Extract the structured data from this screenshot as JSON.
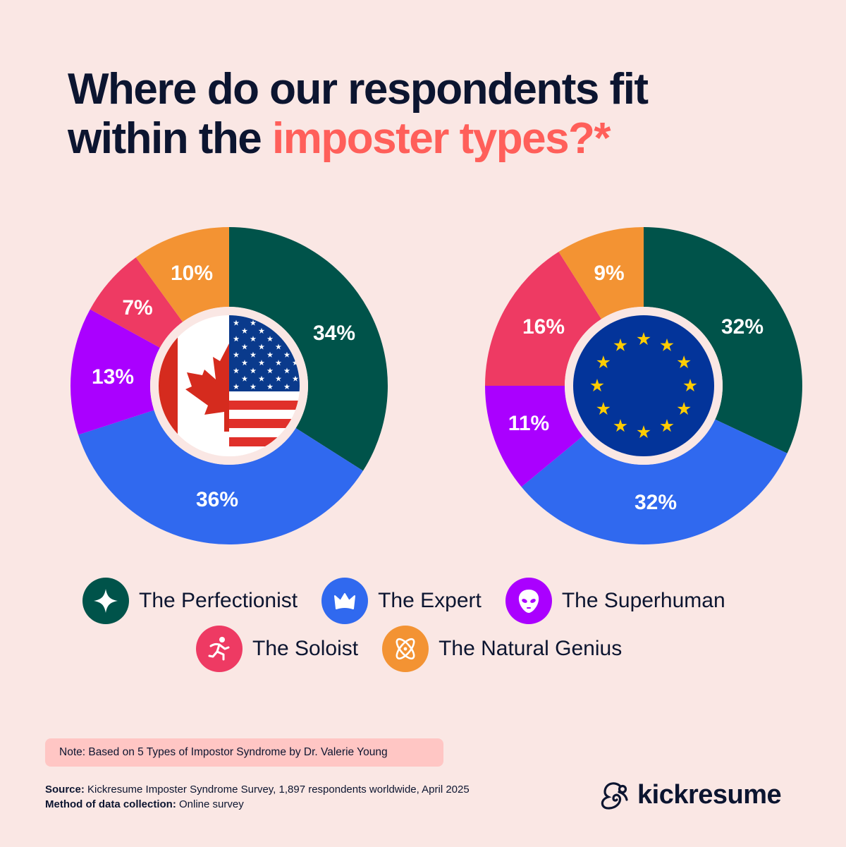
{
  "title": {
    "line1": "Where do our respondents fit",
    "line2_prefix": "within the ",
    "line2_accent": "imposter types?*"
  },
  "colors": {
    "background": "#FAE7E4",
    "title_dark": "#0C1530",
    "title_accent": "#FF5F5A",
    "perfectionist": "#00534A",
    "expert": "#3069EF",
    "superhuman": "#AA00FF",
    "soloist": "#EE3A63",
    "natural_genius": "#F39333",
    "note_bg": "#FFC6C4"
  },
  "chart_data": [
    {
      "type": "pie",
      "variant": "donut",
      "title": "Canada & USA",
      "center_image": "canada-usa-split-flag",
      "categories": [
        "The Perfectionist",
        "The Expert",
        "The Superhuman",
        "The Soloist",
        "The Natural Genius"
      ],
      "values": [
        34,
        36,
        13,
        7,
        10
      ],
      "labels": [
        "34%",
        "36%",
        "13%",
        "7%",
        "10%"
      ],
      "colors": [
        "#00534A",
        "#3069EF",
        "#AA00FF",
        "#EE3A63",
        "#F39333"
      ],
      "start_angle": "12 o'clock",
      "direction": "clockwise"
    },
    {
      "type": "pie",
      "variant": "donut",
      "title": "European Union",
      "center_image": "eu-flag",
      "categories": [
        "The Perfectionist",
        "The Expert",
        "The Superhuman",
        "The Soloist",
        "The Natural Genius"
      ],
      "values": [
        32,
        32,
        11,
        16,
        9
      ],
      "labels": [
        "32%",
        "32%",
        "11%",
        "16%",
        "9%"
      ],
      "colors": [
        "#00534A",
        "#3069EF",
        "#AA00FF",
        "#EE3A63",
        "#F39333"
      ],
      "start_angle": "12 o'clock",
      "direction": "clockwise"
    }
  ],
  "legend": {
    "items": [
      {
        "label": "The Perfectionist",
        "icon": "sparkle-star-icon",
        "color": "#00534A"
      },
      {
        "label": "The Expert",
        "icon": "crown-icon",
        "color": "#3069EF"
      },
      {
        "label": "The Superhuman",
        "icon": "alien-icon",
        "color": "#AA00FF"
      },
      {
        "label": "The Soloist",
        "icon": "running-person-icon",
        "color": "#EE3A63"
      },
      {
        "label": "The Natural Genius",
        "icon": "atom-icon",
        "color": "#F39333"
      }
    ]
  },
  "note": "Note: Based on 5 Types of Impostor Syndrome by Dr. Valerie Young",
  "source": {
    "source_label": "Source:",
    "source_text": " Kickresume Imposter Syndrome Survey, 1,897 respondents worldwide, April 2025",
    "method_label": "Method of data collection:",
    "method_text": " Online survey"
  },
  "brand": {
    "name": "kickresume",
    "icon": "chameleon-logo-icon"
  }
}
